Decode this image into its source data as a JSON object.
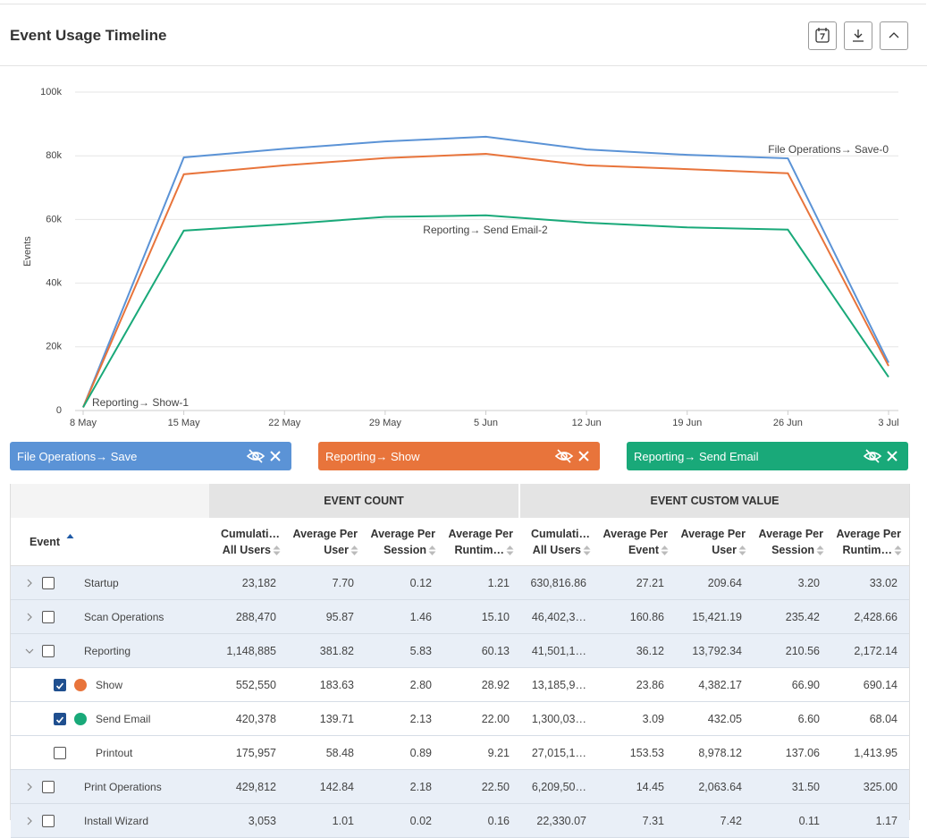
{
  "header": {
    "title": "Event Usage Timeline"
  },
  "chart_data": {
    "type": "line",
    "y_label": "Events",
    "categories": [
      "8 May",
      "15 May",
      "22 May",
      "29 May",
      "5 Jun",
      "12 Jun",
      "19 Jun",
      "26 Jun",
      "3 Jul"
    ],
    "series": [
      {
        "name": "File Operations→ Save",
        "color": "#5b93d6",
        "values": [
          1000,
          79500,
          82200,
          84500,
          86000,
          82000,
          80300,
          79200,
          15000
        ]
      },
      {
        "name": "Reporting→ Show",
        "color": "#e8743b",
        "values": [
          1000,
          74200,
          77000,
          79300,
          80600,
          77000,
          75800,
          74500,
          14000
        ]
      },
      {
        "name": "Reporting→ Send Email",
        "color": "#19a979",
        "values": [
          1000,
          56500,
          58500,
          60800,
          61300,
          59000,
          57500,
          56800,
          10500
        ]
      }
    ],
    "annotations": [
      {
        "text": "File Operations→ Save-0",
        "color": "#5b93d6"
      },
      {
        "text": "Reporting→ Send Email-2",
        "color": "#19a979"
      },
      {
        "text": "Reporting→ Show-1",
        "color": "#e8743b"
      }
    ],
    "ylim": [
      0,
      100000
    ],
    "yticks": [
      0,
      {
        "value": 20000,
        "label": "20k"
      },
      {
        "value": 40000,
        "label": "40k"
      },
      {
        "value": 60000,
        "label": "60k"
      },
      {
        "value": 80000,
        "label": "80k"
      },
      {
        "value": 100000,
        "label": "100k"
      }
    ],
    "grid": true
  },
  "table": {
    "group_headers": [
      "EVENT COUNT",
      "EVENT CUSTOM VALUE"
    ],
    "columns": [
      [
        "Event"
      ],
      [
        "Cumulati…",
        "All Users"
      ],
      [
        "Average Per",
        "User"
      ],
      [
        "Average Per",
        "Session"
      ],
      [
        "Average Per",
        "Runtim…"
      ],
      [
        "Cumulati…",
        "All Users"
      ],
      [
        "Average Per",
        "Event"
      ],
      [
        "Average Per",
        "User"
      ],
      [
        "Average Per",
        "Session"
      ],
      [
        "Average Per",
        "Runtim…"
      ]
    ],
    "rows": [
      {
        "label": "Startup",
        "expander": "collapsed",
        "checked": false,
        "cells": [
          "23,182",
          "7.70",
          "0.12",
          "1.21",
          "630,816.86",
          "27.21",
          "209.64",
          "3.20",
          "33.02"
        ]
      },
      {
        "label": "Scan Operations",
        "expander": "collapsed",
        "checked": false,
        "cells": [
          "288,470",
          "95.87",
          "1.46",
          "15.10",
          "46,402,3…",
          "160.86",
          "15,421.19",
          "235.42",
          "2,428.66"
        ]
      },
      {
        "label": "Reporting",
        "expander": "expanded",
        "checked": false,
        "cells": [
          "1,148,885",
          "381.82",
          "5.83",
          "60.13",
          "41,501,1…",
          "36.12",
          "13,792.34",
          "210.56",
          "2,172.14"
        ]
      },
      {
        "label": "Show",
        "checked": true,
        "color": "#e8743b",
        "cells": [
          "552,550",
          "183.63",
          "2.80",
          "28.92",
          "13,185,9…",
          "23.86",
          "4,382.17",
          "66.90",
          "690.14"
        ]
      },
      {
        "label": "Send Email",
        "checked": true,
        "color": "#19a979",
        "cells": [
          "420,378",
          "139.71",
          "2.13",
          "22.00",
          "1,300,03…",
          "3.09",
          "432.05",
          "6.60",
          "68.04"
        ]
      },
      {
        "label": "Printout",
        "checked": false,
        "cells": [
          "175,957",
          "58.48",
          "0.89",
          "9.21",
          "27,015,1…",
          "153.53",
          "8,978.12",
          "137.06",
          "1,413.95"
        ]
      },
      {
        "label": "Print Operations",
        "expander": "collapsed",
        "checked": false,
        "cells": [
          "429,812",
          "142.84",
          "2.18",
          "22.50",
          "6,209,50…",
          "14.45",
          "2,063.64",
          "31.50",
          "325.00"
        ]
      },
      {
        "label": "Install Wizard",
        "expander": "collapsed",
        "checked": false,
        "cells": [
          "3,053",
          "1.01",
          "0.02",
          "0.16",
          "22,330.07",
          "7.31",
          "7.42",
          "0.11",
          "1.17"
        ]
      }
    ]
  }
}
